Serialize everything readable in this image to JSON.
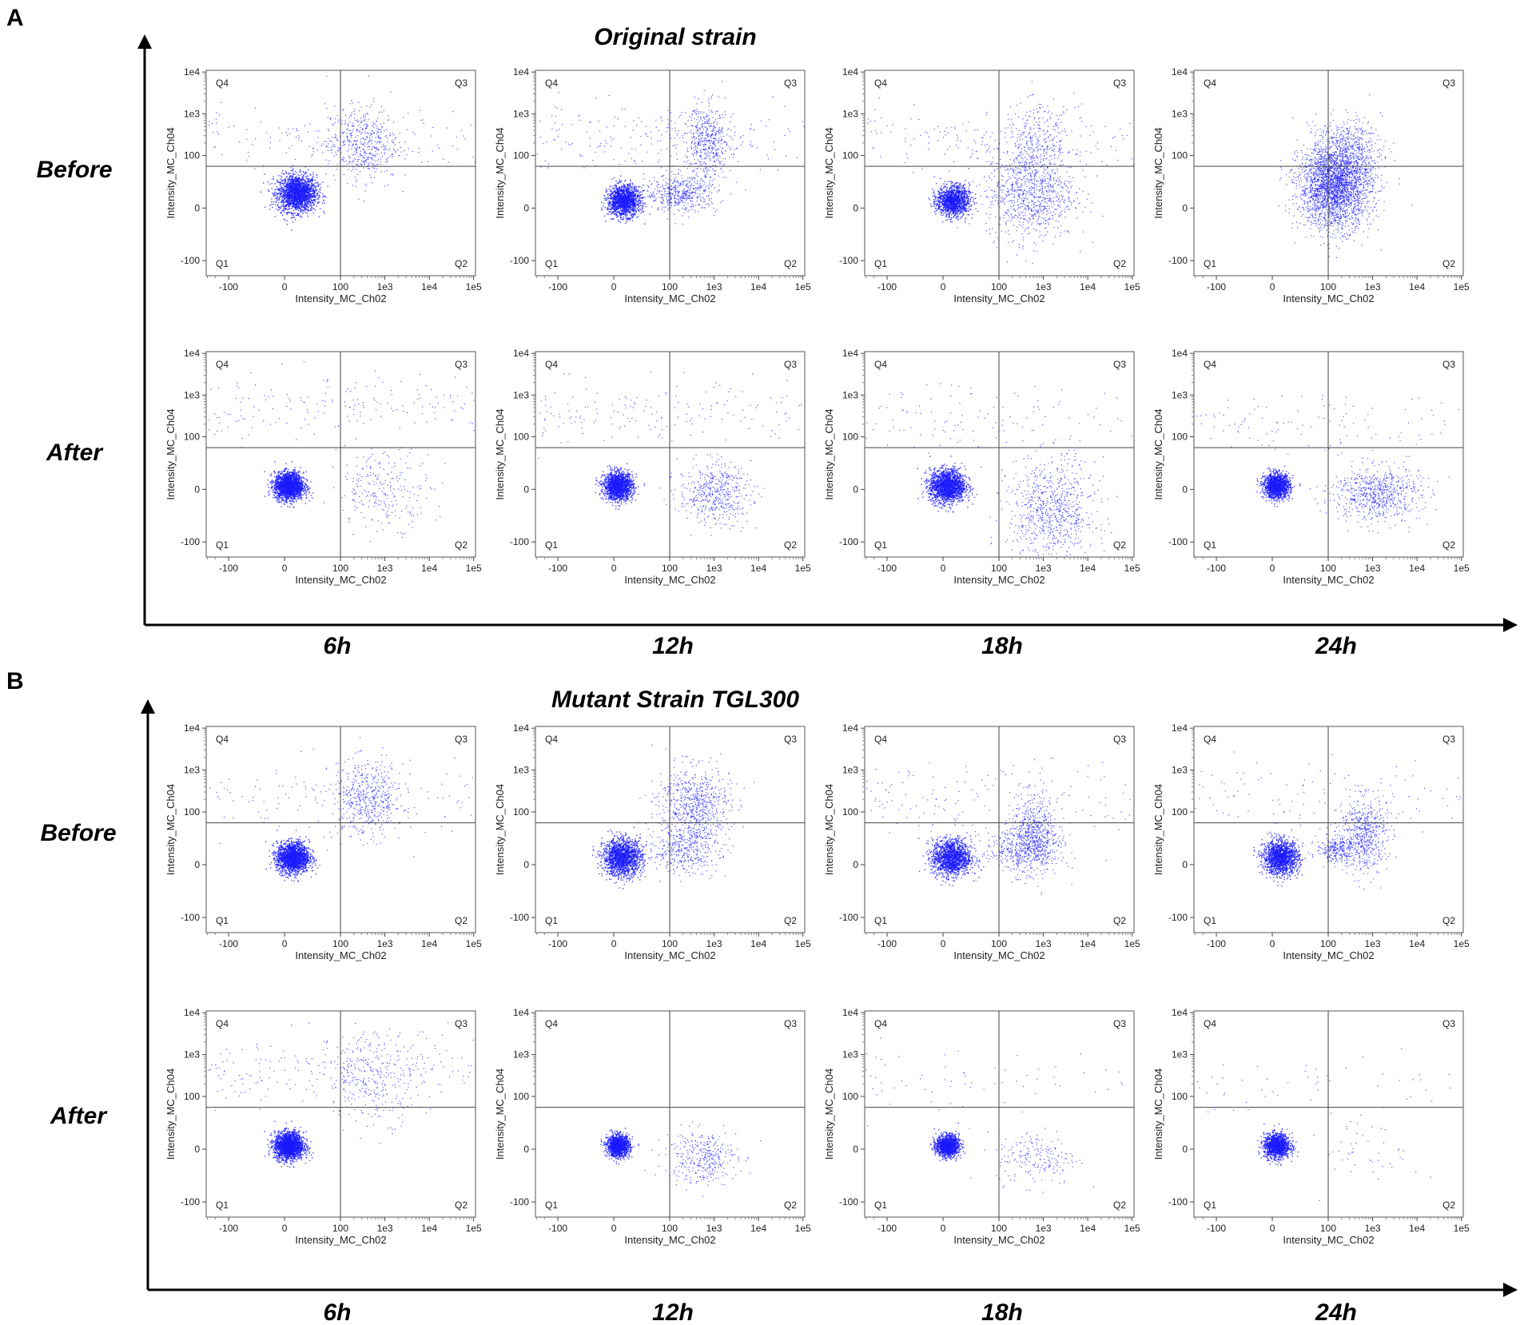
{
  "chart_data": {
    "type": "scatter",
    "description_axes": {
      "xlabel": "Intensity_MC_Ch02",
      "ylabel": "Intensity_MC_Ch04",
      "x_ticks": [
        "-100",
        "0",
        "100",
        "1e3",
        "1e4",
        "1e5"
      ],
      "y_ticks": [
        "1e4",
        "1e3",
        "100",
        "0",
        "-100"
      ],
      "gate_x": 100,
      "gate_y": 55,
      "quadrants": [
        "Q1",
        "Q2",
        "Q3",
        "Q4"
      ]
    },
    "columns": [
      "6h",
      "12h",
      "18h",
      "24h"
    ],
    "rows": [
      "Before",
      "After"
    ],
    "panels": [
      {
        "letter": "A",
        "title": "Original strain",
        "plots": [
          {
            "row": "Before",
            "time": "6h",
            "clusters": [
              {
                "cx": 15,
                "cy": 20,
                "sx": 12,
                "sy": 12,
                "n": 2000
              },
              {
                "cx": 300,
                "cy": 200,
                "sx": 0.9,
                "sy": 1.0,
                "n": 500,
                "log": true
              },
              {
                "cx": 5,
                "cy": 250,
                "sx": 10,
                "sy": 0.8,
                "n": 250,
                "log": true
              }
            ]
          },
          {
            "row": "Before",
            "time": "12h",
            "clusters": [
              {
                "cx": 12,
                "cy": 10,
                "sx": 10,
                "sy": 10,
                "n": 1500
              },
              {
                "cx": 180,
                "cy": 20,
                "sx": 0.9,
                "sy": 12,
                "n": 500,
                "log": true
              },
              {
                "cx": 700,
                "cy": 200,
                "sx": 0.6,
                "sy": 1.0,
                "n": 500,
                "log": true
              },
              {
                "cx": 5,
                "cy": 300,
                "sx": 8,
                "sy": 0.9,
                "n": 300,
                "log": true
              }
            ]
          },
          {
            "row": "Before",
            "time": "18h",
            "clusters": [
              {
                "cx": 12,
                "cy": 10,
                "sx": 10,
                "sy": 10,
                "n": 1300
              },
              {
                "cx": 500,
                "cy": 20,
                "sx": 1.1,
                "sy": 30,
                "n": 900,
                "log": true
              },
              {
                "cx": 5,
                "cy": 250,
                "sx": 10,
                "sy": 0.9,
                "n": 300,
                "log": true
              },
              {
                "cx": 800,
                "cy": 200,
                "sx": 0.9,
                "sy": 1.0,
                "n": 300,
                "log": true
              }
            ]
          },
          {
            "row": "Before",
            "time": "24h",
            "clusters": [
              {
                "cx": 140,
                "cy": 30,
                "sx": 0.9,
                "sy": 28,
                "n": 2800,
                "log": true
              },
              {
                "cx": 300,
                "cy": 150,
                "sx": 0.8,
                "sy": 0.8,
                "n": 400,
                "log": true
              }
            ]
          },
          {
            "row": "After",
            "time": "6h",
            "clusters": [
              {
                "cx": 5,
                "cy": 5,
                "sx": 9,
                "sy": 9,
                "n": 2000
              },
              {
                "cx": -40,
                "cy": 500,
                "sx": 18,
                "sy": 0.9,
                "n": 500,
                "log": true
              },
              {
                "cx": 1000,
                "cy": 0,
                "sx": 1.2,
                "sy": 25,
                "n": 250,
                "log": true
              }
            ]
          },
          {
            "row": "After",
            "time": "12h",
            "clusters": [
              {
                "cx": 5,
                "cy": 5,
                "sx": 9,
                "sy": 9,
                "n": 1600
              },
              {
                "cx": -15,
                "cy": 400,
                "sx": 12,
                "sy": 0.9,
                "n": 350,
                "log": true
              },
              {
                "cx": 1000,
                "cy": -5,
                "sx": 0.9,
                "sy": 20,
                "n": 500,
                "log": true
              }
            ]
          },
          {
            "row": "After",
            "time": "18h",
            "clusters": [
              {
                "cx": 5,
                "cy": 5,
                "sx": 11,
                "sy": 11,
                "n": 1800
              },
              {
                "cx": 1500,
                "cy": -30,
                "sx": 1.1,
                "sy": 35,
                "n": 800,
                "log": true
              },
              {
                "cx": 0,
                "cy": 300,
                "sx": 12,
                "sy": 0.9,
                "n": 250,
                "log": true
              }
            ]
          },
          {
            "row": "After",
            "time": "24h",
            "clusters": [
              {
                "cx": 5,
                "cy": 5,
                "sx": 8,
                "sy": 8,
                "n": 1400
              },
              {
                "cx": 1200,
                "cy": -5,
                "sx": 1.1,
                "sy": 18,
                "n": 700,
                "log": true
              },
              {
                "cx": 0,
                "cy": 200,
                "sx": 8,
                "sy": 0.8,
                "n": 150,
                "log": true
              }
            ]
          }
        ]
      },
      {
        "letter": "B",
        "title": "Mutant Strain TGL300",
        "plots": [
          {
            "row": "Before",
            "time": "6h",
            "clusters": [
              {
                "cx": 10,
                "cy": 10,
                "sx": 10,
                "sy": 10,
                "n": 1900
              },
              {
                "cx": 400,
                "cy": 200,
                "sx": 0.9,
                "sy": 1.0,
                "n": 500,
                "log": true
              },
              {
                "cx": 0,
                "cy": 250,
                "sx": 10,
                "sy": 0.9,
                "n": 250,
                "log": true
              }
            ]
          },
          {
            "row": "Before",
            "time": "12h",
            "clusters": [
              {
                "cx": 10,
                "cy": 10,
                "sx": 12,
                "sy": 12,
                "n": 1600
              },
              {
                "cx": 350,
                "cy": 150,
                "sx": 0.9,
                "sy": 1.0,
                "n": 700,
                "log": true
              },
              {
                "cx": 200,
                "cy": 20,
                "sx": 0.9,
                "sy": 15,
                "n": 400,
                "log": true
              }
            ]
          },
          {
            "row": "Before",
            "time": "18h",
            "clusters": [
              {
                "cx": 10,
                "cy": 10,
                "sx": 12,
                "sy": 12,
                "n": 1500
              },
              {
                "cx": 600,
                "cy": 40,
                "sx": 0.6,
                "sy": 25,
                "n": 600,
                "log": true
              },
              {
                "cx": 300,
                "cy": 20,
                "sx": 1.0,
                "sy": 15,
                "n": 400,
                "log": true
              },
              {
                "cx": 0,
                "cy": 250,
                "sx": 10,
                "sy": 0.9,
                "n": 250,
                "log": true
              }
            ]
          },
          {
            "row": "Before",
            "time": "24h",
            "clusters": [
              {
                "cx": 10,
                "cy": 10,
                "sx": 11,
                "sy": 11,
                "n": 1500
              },
              {
                "cx": 600,
                "cy": 40,
                "sx": 0.6,
                "sy": 25,
                "n": 600,
                "log": true
              },
              {
                "cx": 150,
                "cy": 20,
                "sx": 0.5,
                "sy": 8,
                "n": 250,
                "log": true
              },
              {
                "cx": 0,
                "cy": 250,
                "sx": 10,
                "sy": 0.9,
                "n": 200,
                "log": true
              }
            ]
          },
          {
            "row": "After",
            "time": "6h",
            "clusters": [
              {
                "cx": 5,
                "cy": 5,
                "sx": 9,
                "sy": 9,
                "n": 2000
              },
              {
                "cx": -20,
                "cy": 450,
                "sx": 14,
                "sy": 0.9,
                "n": 500,
                "log": true
              },
              {
                "cx": 600,
                "cy": 300,
                "sx": 1.2,
                "sy": 1.2,
                "n": 300,
                "log": true
              }
            ]
          },
          {
            "row": "After",
            "time": "12h",
            "clusters": [
              {
                "cx": 5,
                "cy": 5,
                "sx": 7,
                "sy": 7,
                "n": 1300
              },
              {
                "cx": 500,
                "cy": -10,
                "sx": 0.9,
                "sy": 18,
                "n": 350,
                "log": true
              }
            ]
          },
          {
            "row": "After",
            "time": "18h",
            "clusters": [
              {
                "cx": 5,
                "cy": 5,
                "sx": 7,
                "sy": 7,
                "n": 1300
              },
              {
                "cx": 700,
                "cy": -10,
                "sx": 1.0,
                "sy": 18,
                "n": 200,
                "log": true
              },
              {
                "cx": 0,
                "cy": 250,
                "sx": 8,
                "sy": 0.9,
                "n": 100,
                "log": true
              }
            ]
          },
          {
            "row": "After",
            "time": "24h",
            "clusters": [
              {
                "cx": 5,
                "cy": 5,
                "sx": 8,
                "sy": 8,
                "n": 1300
              },
              {
                "cx": 0,
                "cy": 200,
                "sx": 8,
                "sy": 0.8,
                "n": 60,
                "log": true
              },
              {
                "cx": 1000,
                "cy": 0,
                "sx": 1.2,
                "sy": 25,
                "n": 50,
                "log": true
              }
            ]
          }
        ]
      }
    ],
    "point_color": "#1a1aff"
  }
}
